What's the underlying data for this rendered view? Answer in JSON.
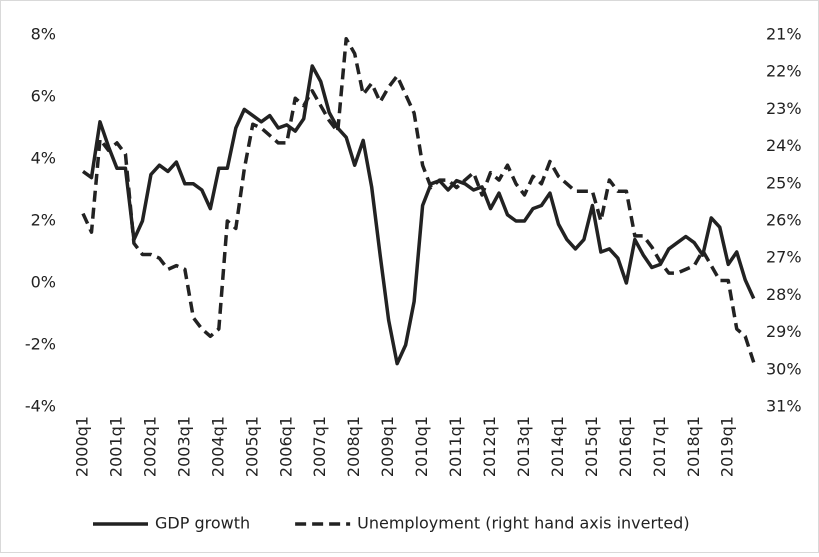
{
  "chart_data": {
    "type": "line",
    "categories": [
      "2000q1",
      null,
      null,
      null,
      "2001q1",
      null,
      null,
      null,
      "2002q1",
      null,
      null,
      null,
      "2003q1",
      null,
      null,
      null,
      "2004q1",
      null,
      null,
      null,
      "2005q1",
      null,
      null,
      null,
      "2006q1",
      null,
      null,
      null,
      "2007q1",
      null,
      null,
      null,
      "2008q1",
      null,
      null,
      null,
      "2009q1",
      null,
      null,
      null,
      "2010q1",
      null,
      null,
      null,
      "2011q1",
      null,
      null,
      null,
      "2012q1",
      null,
      null,
      null,
      "2013q1",
      null,
      null,
      null,
      "2014q1",
      null,
      null,
      null,
      "2015q1",
      null,
      null,
      null,
      "2016q1",
      null,
      null,
      null,
      "2017q1",
      null,
      null,
      null,
      "2018q1",
      null,
      null,
      null,
      "2019q1",
      null,
      null,
      null
    ],
    "series": [
      {
        "name": "GDP growth",
        "color": "#222222",
        "line_style": "solid",
        "axis": "y",
        "values": [
          3.6,
          3.4,
          5.2,
          4.4,
          3.7,
          3.7,
          1.4,
          2.0,
          3.5,
          3.8,
          3.6,
          3.9,
          3.2,
          3.2,
          3.0,
          2.4,
          3.7,
          3.7,
          5.0,
          5.6,
          5.4,
          5.2,
          5.4,
          5.0,
          5.1,
          4.9,
          5.3,
          7.0,
          6.5,
          5.5,
          5.0,
          4.7,
          3.8,
          4.6,
          3.1,
          0.9,
          -1.2,
          -2.6,
          -2.0,
          -0.6,
          2.5,
          3.2,
          3.3,
          3.0,
          3.3,
          3.2,
          3.0,
          3.1,
          2.4,
          2.9,
          2.2,
          2.0,
          2.0,
          2.4,
          2.5,
          2.9,
          1.9,
          1.4,
          1.1,
          1.4,
          2.5,
          1.0,
          1.1,
          0.8,
          0.0,
          1.4,
          0.9,
          0.5,
          0.6,
          1.1,
          1.3,
          1.5,
          1.3,
          0.9,
          2.1,
          1.8,
          0.6,
          1.0,
          0.1,
          -0.5
        ]
      },
      {
        "name": "Unemployment (right hand axis inverted)",
        "color": "#222222",
        "line_style": "dashed",
        "axis": "y2",
        "values": [
          25.8,
          26.3,
          23.8,
          24.1,
          23.9,
          24.2,
          26.6,
          26.9,
          26.9,
          27.0,
          27.3,
          27.2,
          27.3,
          28.6,
          28.9,
          29.1,
          28.9,
          26.0,
          26.2,
          24.6,
          23.4,
          23.5,
          23.7,
          23.9,
          23.9,
          22.7,
          22.9,
          22.5,
          22.9,
          23.3,
          23.6,
          21.1,
          21.5,
          22.6,
          22.3,
          22.8,
          22.4,
          22.1,
          22.6,
          23.1,
          24.5,
          25.1,
          24.9,
          24.9,
          25.1,
          24.9,
          24.7,
          25.3,
          24.7,
          24.9,
          24.5,
          25.0,
          25.3,
          24.8,
          25.0,
          24.4,
          24.8,
          25.0,
          25.2,
          25.2,
          25.2,
          26.0,
          24.9,
          25.2,
          25.2,
          26.4,
          26.4,
          26.7,
          27.1,
          27.4,
          27.4,
          27.3,
          27.2,
          26.8,
          27.2,
          27.6,
          27.6,
          28.9,
          29.1,
          29.8
        ]
      }
    ],
    "ylim": [
      -4,
      8
    ],
    "yticks": [
      {
        "value": -4,
        "label": "-4%"
      },
      {
        "value": -2,
        "label": "-2%"
      },
      {
        "value": 0,
        "label": "0%"
      },
      {
        "value": 2,
        "label": "2%"
      },
      {
        "value": 4,
        "label": "4%"
      },
      {
        "value": 6,
        "label": "6%"
      },
      {
        "value": 8,
        "label": "8%"
      }
    ],
    "y2lim": [
      31,
      21
    ],
    "y2ticks": [
      {
        "value": 31,
        "label": "31%"
      },
      {
        "value": 30,
        "label": "30%"
      },
      {
        "value": 29,
        "label": "29%"
      },
      {
        "value": 28,
        "label": "28%"
      },
      {
        "value": 27,
        "label": "27%"
      },
      {
        "value": 26,
        "label": "26%"
      },
      {
        "value": 25,
        "label": "25%"
      },
      {
        "value": 24,
        "label": "24%"
      },
      {
        "value": 23,
        "label": "23%"
      },
      {
        "value": 22,
        "label": "22%"
      },
      {
        "value": 21,
        "label": "21%"
      }
    ],
    "grid": false,
    "legend": "bottom"
  }
}
